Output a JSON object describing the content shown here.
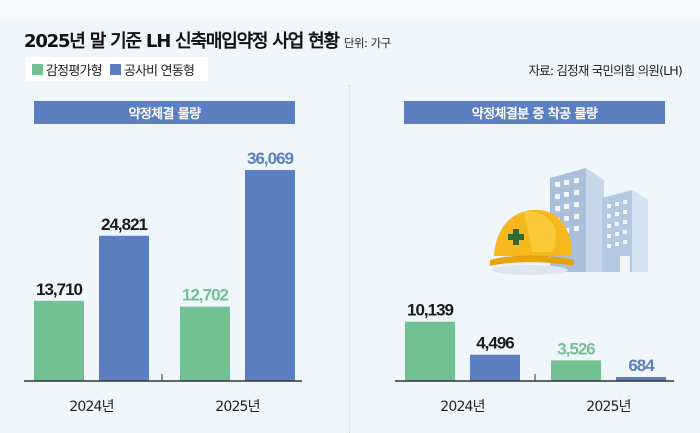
{
  "header": {
    "title": "2025년 말 기준 LH 신축매입약정 사업 현황",
    "unit": "단위: 가구",
    "source": "자료: 김정재 국민의힘 의원(LH)"
  },
  "legend": [
    {
      "label": "감정평가형",
      "color": "#72c193"
    },
    {
      "label": "공사비 연동형",
      "color": "#5b7fc1"
    }
  ],
  "colors": {
    "green": "#72c193",
    "blue": "#5b7fc1",
    "green_label_highlight": "#72c193",
    "blue_label_highlight": "#5b7fc1",
    "label_default": "#1a1a1a",
    "axis": "#333333",
    "panel_header_bg": "#5b7fc1"
  },
  "illustration": {
    "icons": [
      "hard-hat-icon",
      "buildings-icon"
    ]
  },
  "chart_data": [
    {
      "type": "bar",
      "title": "약정체결 물량",
      "xlabel": "",
      "ylabel": "",
      "categories": [
        "2024년",
        "2025년"
      ],
      "series": [
        {
          "name": "감정평가형",
          "values": [
            13710,
            12702
          ]
        },
        {
          "name": "공사비 연동형",
          "values": [
            24821,
            36069
          ]
        }
      ],
      "value_labels": [
        [
          "13,710",
          "12,702"
        ],
        [
          "24,821",
          "36,069"
        ]
      ],
      "highlight_category": "2025년",
      "ylim": [
        0,
        36069
      ],
      "grid": false,
      "legend_position": "top-left"
    },
    {
      "type": "bar",
      "title": "약정체결분 중 착공 물량",
      "xlabel": "",
      "ylabel": "",
      "categories": [
        "2024년",
        "2025년"
      ],
      "series": [
        {
          "name": "감정평가형",
          "values": [
            10139,
            3526
          ]
        },
        {
          "name": "공사비 연동형",
          "values": [
            4496,
            684
          ]
        }
      ],
      "value_labels": [
        [
          "10,139",
          "3,526"
        ],
        [
          "4,496",
          "684"
        ]
      ],
      "highlight_category": "2025년",
      "ylim": [
        0,
        36069
      ],
      "grid": false,
      "legend_position": "top-left"
    }
  ]
}
